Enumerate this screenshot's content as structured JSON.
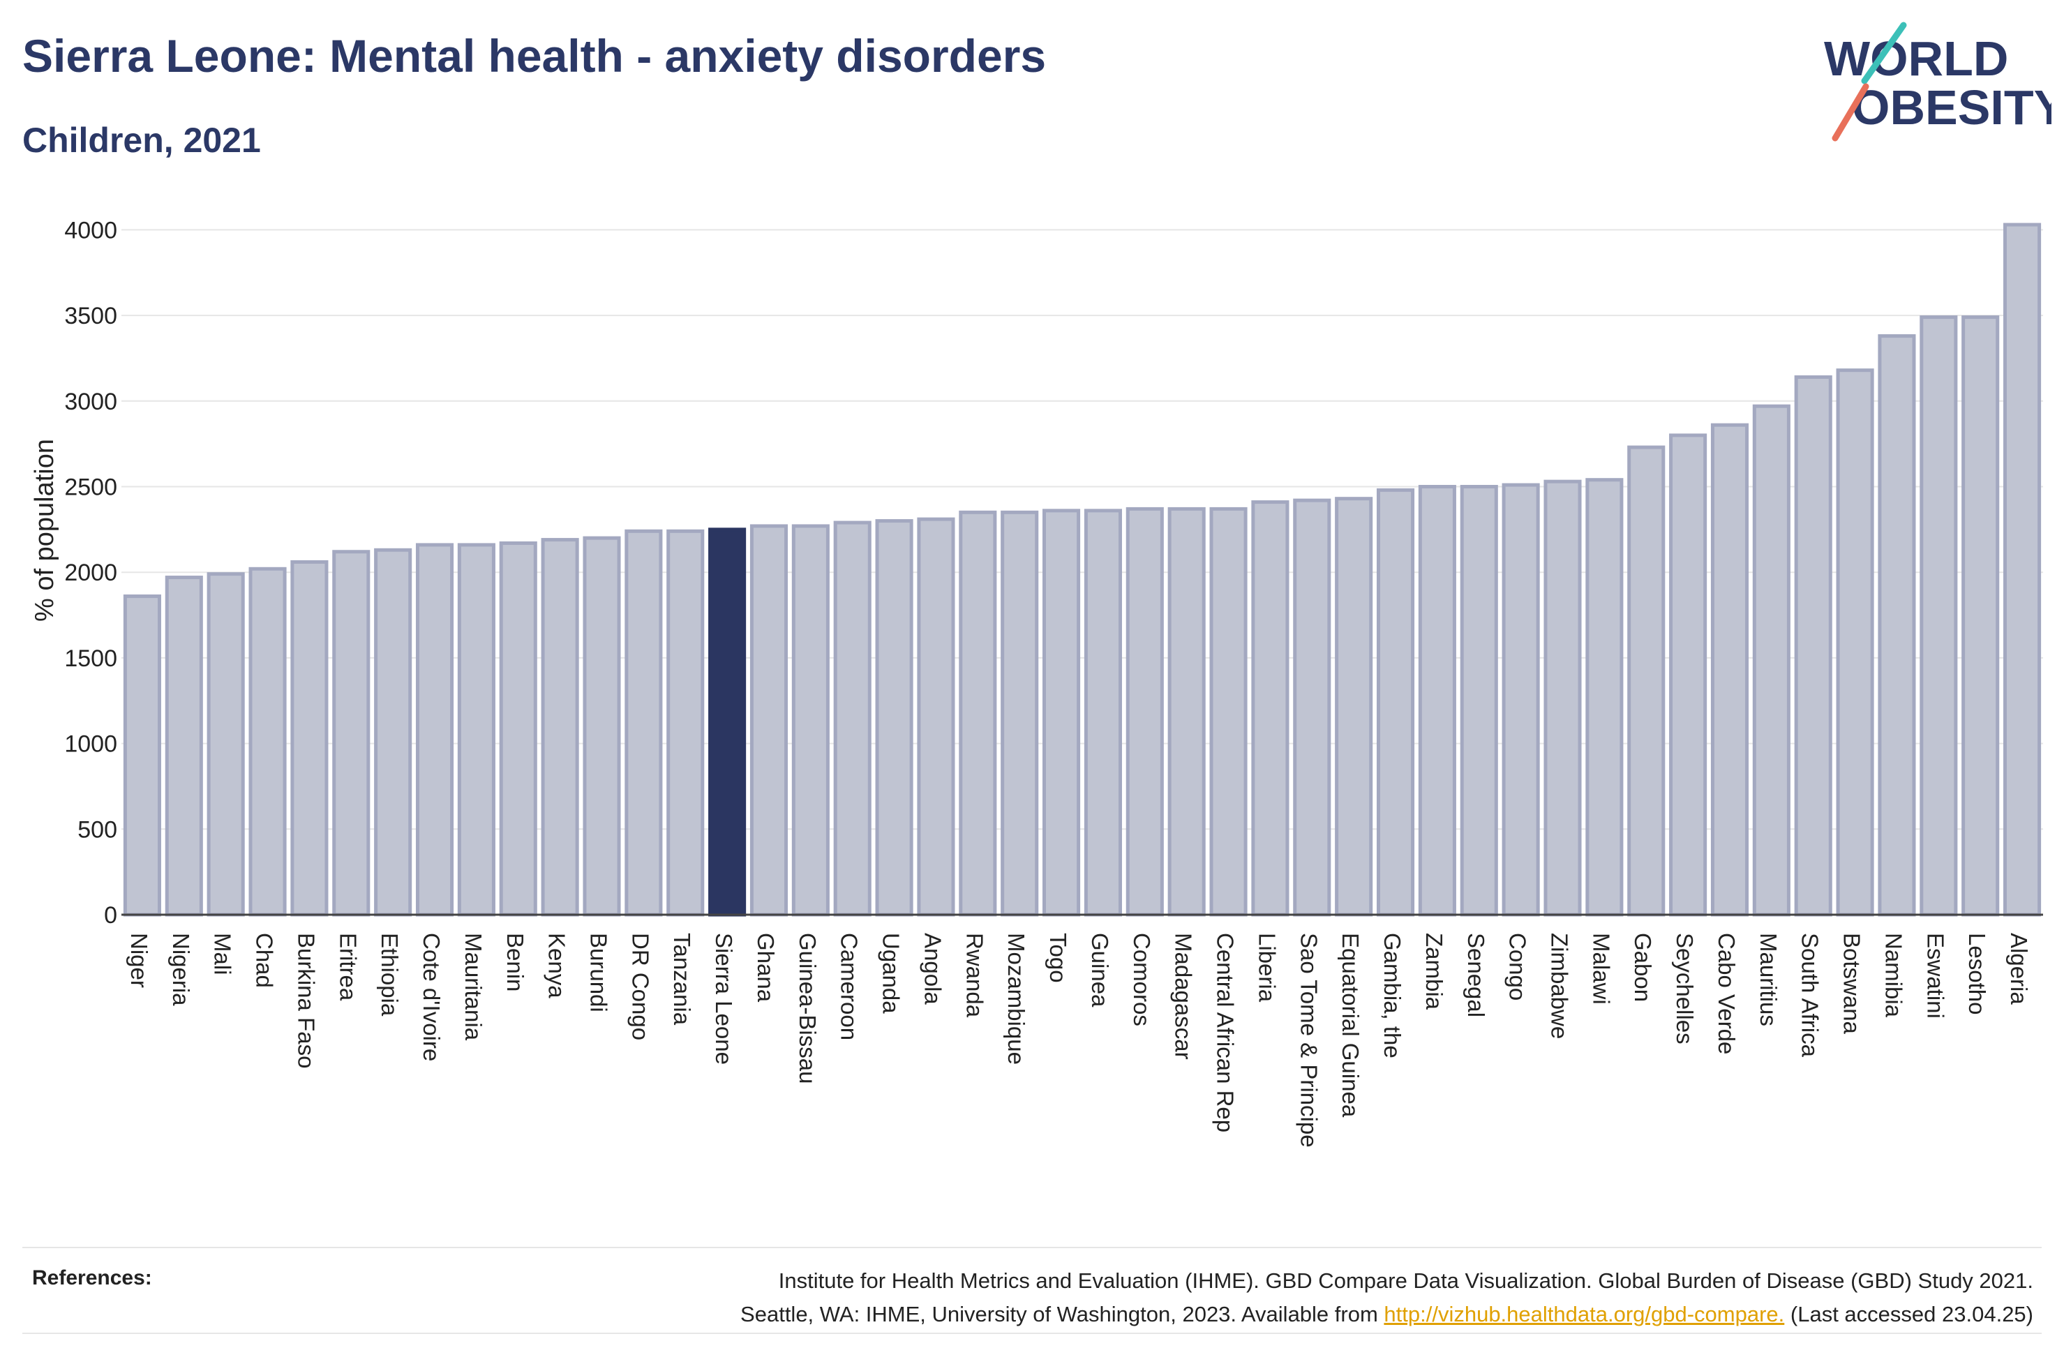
{
  "header": {
    "title": "Sierra Leone: Mental health - anxiety disorders",
    "subtitle": "Children, 2021"
  },
  "logo": {
    "line1": "WORLD",
    "line2": "OBESITY"
  },
  "colors": {
    "highlight": "#2b3661",
    "bar_fill": "#c0c4d2",
    "bar_stroke": "#a3a8c0",
    "title": "#2b3866",
    "link": "#e0a000"
  },
  "chart_data": {
    "type": "bar",
    "ylabel": "% of population",
    "ylim": [
      0,
      4100
    ],
    "yticks": [
      0,
      500,
      1000,
      1500,
      2000,
      2500,
      3000,
      3500,
      4000
    ],
    "grid": true,
    "highlight": "Sierra Leone",
    "categories": [
      "Niger",
      "Nigeria",
      "Mali",
      "Chad",
      "Burkina Faso",
      "Eritrea",
      "Ethiopia",
      "Cote d'Ivoire",
      "Mauritania",
      "Benin",
      "Kenya",
      "Burundi",
      "DR Congo",
      "Tanzania",
      "Sierra Leone",
      "Ghana",
      "Guinea-Bissau",
      "Cameroon",
      "Uganda",
      "Angola",
      "Rwanda",
      "Mozambique",
      "Togo",
      "Guinea",
      "Comoros",
      "Madagascar",
      "Central African Rep",
      "Liberia",
      "Sao Tome & Principe",
      "Equatorial Guinea",
      "Gambia, the",
      "Zambia",
      "Senegal",
      "Congo",
      "Zimbabwe",
      "Malawi",
      "Gabon",
      "Seychelles",
      "Cabo Verde",
      "Mauritius",
      "South Africa",
      "Botswana",
      "Namibia",
      "Eswatini",
      "Lesotho",
      "Algeria"
    ],
    "values": [
      1860,
      1970,
      1990,
      2020,
      2060,
      2120,
      2130,
      2160,
      2160,
      2170,
      2190,
      2200,
      2240,
      2240,
      2250,
      2270,
      2270,
      2290,
      2300,
      2310,
      2350,
      2350,
      2360,
      2360,
      2370,
      2370,
      2370,
      2410,
      2420,
      2430,
      2480,
      2500,
      2500,
      2510,
      2530,
      2540,
      2730,
      2800,
      2860,
      2970,
      3140,
      3180,
      3380,
      3490,
      3490,
      4030
    ]
  },
  "references": {
    "label": "References:",
    "line1": "Institute for Health Metrics and Evaluation (IHME). GBD Compare Data Visualization. Global Burden of Disease (GBD) Study 2021.",
    "line2_prefix": "Seattle, WA: IHME, University of Washington, 2023. Available from ",
    "link": "http://vizhub.healthdata.org/gbd-compare.",
    "line2_suffix": " (Last accessed 23.04.25)"
  }
}
